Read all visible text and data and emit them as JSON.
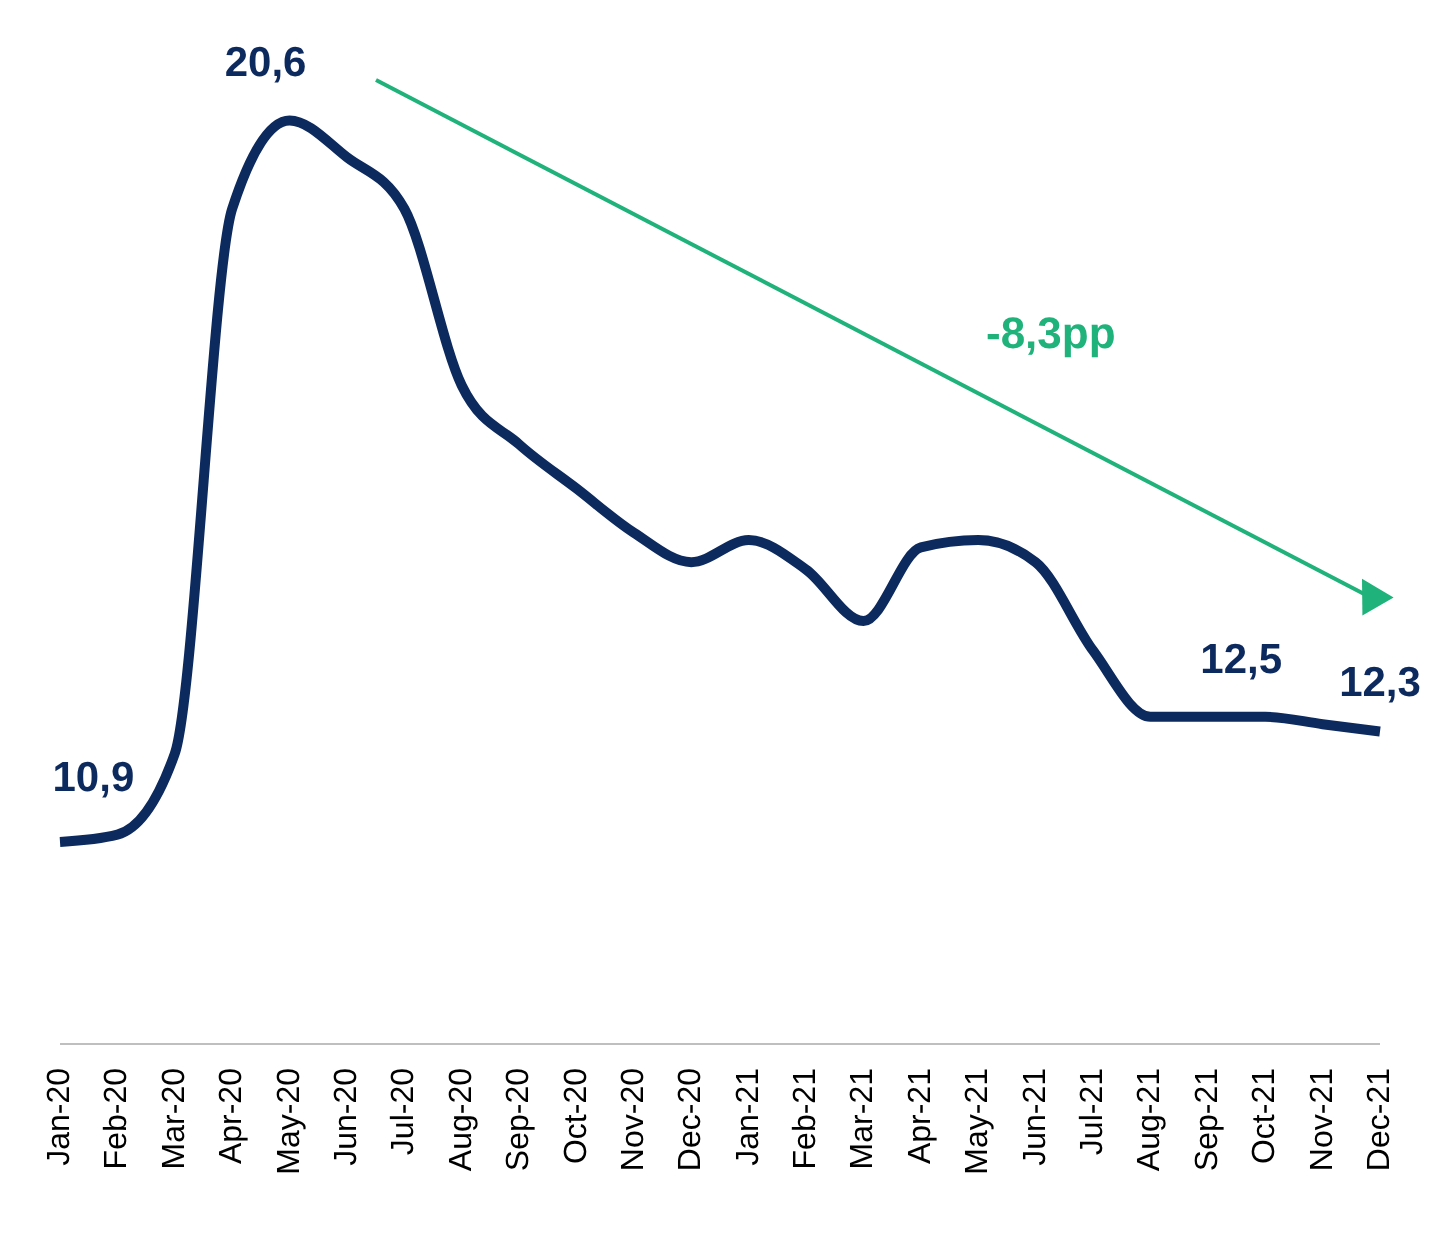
{
  "chart_data": {
    "type": "line",
    "categories": [
      "Jan-20",
      "Feb-20",
      "Mar-20",
      "Apr-20",
      "May-20",
      "Jun-20",
      "Jul-20",
      "Aug-20",
      "Sep-20",
      "Oct-20",
      "Nov-20",
      "Dec-20",
      "Jan-21",
      "Feb-21",
      "Mar-21",
      "Apr-21",
      "May-21",
      "Jun-21",
      "Jul-21",
      "Aug-21",
      "Sep-21",
      "Oct-21",
      "Nov-21",
      "Dec-21"
    ],
    "series": [
      {
        "color": "#0d2a5e",
        "values": [
          10.8,
          10.9,
          12.0,
          19.4,
          20.6,
          20.1,
          19.4,
          17.0,
          16.2,
          15.6,
          15.0,
          14.6,
          14.9,
          14.5,
          13.8,
          14.8,
          14.9,
          14.6,
          13.4,
          12.5,
          12.5,
          12.5,
          12.4,
          12.3
        ],
        "value_labels": [
          null,
          "10,9",
          null,
          null,
          "20,6",
          null,
          null,
          null,
          null,
          null,
          null,
          null,
          null,
          null,
          null,
          null,
          null,
          null,
          null,
          null,
          null,
          "12,5",
          null,
          "12,3"
        ]
      }
    ],
    "annotations": [
      "-8,3pp"
    ],
    "marker": "none",
    "tick_labels": "x"
  }
}
